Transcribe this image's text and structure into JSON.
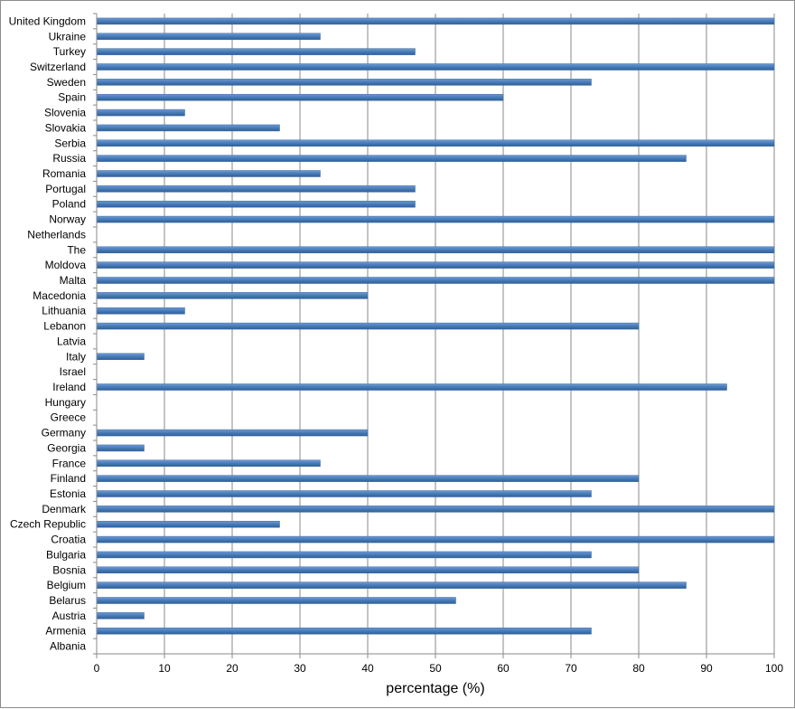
{
  "chart_data": {
    "type": "bar",
    "orientation": "horizontal",
    "categories": [
      "United Kingdom",
      "Ukraine",
      "Turkey",
      "Switzerland",
      "Sweden",
      "Spain",
      "Slovenia",
      "Slovakia",
      "Serbia",
      "Russia",
      "Romania",
      "Portugal",
      "Poland",
      "Norway",
      "Netherlands",
      "The",
      "Moldova",
      "Malta",
      "Macedonia",
      "Lithuania",
      "Lebanon",
      "Latvia",
      "Italy",
      "Israel",
      "Ireland",
      "Hungary",
      "Greece",
      "Germany",
      "Georgia",
      "France",
      "Finland",
      "Estonia",
      "Denmark",
      "Czech Republic",
      "Croatia",
      "Bulgaria",
      "Bosnia",
      "Belgium",
      "Belarus",
      "Austria",
      "Armenia",
      "Albania"
    ],
    "values": [
      100,
      33,
      47,
      100,
      73,
      60,
      13,
      27,
      100,
      87,
      33,
      47,
      47,
      100,
      0,
      100,
      100,
      100,
      40,
      13,
      80,
      0,
      7,
      0,
      93,
      0,
      0,
      40,
      7,
      33,
      80,
      73,
      100,
      27,
      100,
      73,
      80,
      87,
      53,
      7,
      73,
      0
    ],
    "xlabel": "percentage (%)",
    "ylabel": "",
    "xlim": [
      0,
      100
    ],
    "xticks": [
      "0",
      "10",
      "20",
      "30",
      "40",
      "50",
      "60",
      "70",
      "80",
      "90",
      "100"
    ],
    "grid": "vertical",
    "bar_color": "#4a7ebb"
  }
}
